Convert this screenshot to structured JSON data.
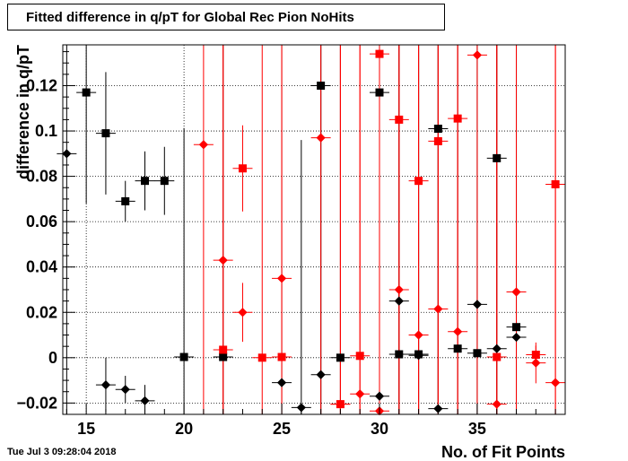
{
  "title": "Fitted difference in q/pT for Global Rec Pion NoHits",
  "timestamp": "Tue Jul  3 09:28:04 2018",
  "chart_data": {
    "type": "scatter",
    "xlabel": "No. of Fit Points",
    "ylabel": "difference in q/pT",
    "xlim": [
      13.8,
      39.5
    ],
    "ylim": [
      -0.025,
      0.138
    ],
    "x_ticks": [
      15,
      20,
      25,
      30,
      35
    ],
    "y_ticks": [
      -0.02,
      0,
      0.02,
      0.04,
      0.06,
      0.08,
      0.1,
      0.12
    ],
    "y_tick_labels": [
      "−0.02",
      "0",
      "0.02",
      "0.04",
      "0.06",
      "0.08",
      "0.1",
      "0.12"
    ],
    "grid": true,
    "series": [
      {
        "color": "#000000",
        "marker": "square",
        "points": [
          {
            "x": 15,
            "y": 0.117,
            "err": 0.049
          },
          {
            "x": 16,
            "y": 0.099,
            "err": 0.027
          },
          {
            "x": 17,
            "y": 0.069,
            "err": 0.009
          },
          {
            "x": 18,
            "y": 0.078,
            "err": 0.013
          },
          {
            "x": 19,
            "y": 0.078,
            "err": 0.015
          },
          {
            "x": 20,
            "y": 0.0003,
            "err": 0.101
          },
          {
            "x": 22,
            "y": 0.0003,
            "err": 0.16
          },
          {
            "x": 27,
            "y": 0.12,
            "err": 0.16
          },
          {
            "x": 28,
            "y": 0.0,
            "err": 0.16
          },
          {
            "x": 30,
            "y": 0.117,
            "err": 0.16
          },
          {
            "x": 31,
            "y": 0.0015,
            "err": 0.16
          },
          {
            "x": 32,
            "y": 0.0015,
            "err": 0.16
          },
          {
            "x": 33,
            "y": 0.101,
            "err": 0.16
          },
          {
            "x": 34,
            "y": 0.004,
            "err": 0.16
          },
          {
            "x": 35,
            "y": 0.002,
            "err": 0.16
          },
          {
            "x": 36,
            "y": 0.088,
            "err": 0.16
          },
          {
            "x": 37,
            "y": 0.0135,
            "err": 0.16
          }
        ]
      },
      {
        "color": "#000000",
        "marker": "diamond",
        "points": [
          {
            "x": 14,
            "y": 0.09,
            "err": 0.16
          },
          {
            "x": 16,
            "y": -0.012,
            "err": 0.012
          },
          {
            "x": 17,
            "y": -0.014,
            "err": 0.006
          },
          {
            "x": 18,
            "y": -0.019,
            "err": 0.007
          },
          {
            "x": 25,
            "y": -0.011,
            "err": 0.16
          },
          {
            "x": 26,
            "y": -0.022,
            "err": 0.118
          },
          {
            "x": 27,
            "y": -0.0075,
            "err": 0.16
          },
          {
            "x": 30,
            "y": -0.017,
            "err": 0.16
          },
          {
            "x": 31,
            "y": 0.025,
            "err": 0.16
          },
          {
            "x": 32,
            "y": 0.001,
            "err": 0.16
          },
          {
            "x": 33,
            "y": -0.0225,
            "err": 0.16
          },
          {
            "x": 35,
            "y": 0.0235,
            "err": 0.16
          },
          {
            "x": 36,
            "y": 0.004,
            "err": 0.16
          },
          {
            "x": 37,
            "y": 0.009,
            "err": 0.16
          }
        ]
      },
      {
        "color": "#ff0000",
        "marker": "square",
        "points": [
          {
            "x": 22,
            "y": 0.0035,
            "err": 0.16
          },
          {
            "x": 23,
            "y": 0.0835,
            "err": 0.019
          },
          {
            "x": 24,
            "y": 0.0,
            "err": 0.16
          },
          {
            "x": 25,
            "y": 0.0003,
            "err": 0.16
          },
          {
            "x": 28,
            "y": -0.0205,
            "err": 0.16
          },
          {
            "x": 29,
            "y": 0.0008,
            "err": 0.16
          },
          {
            "x": 30,
            "y": 0.134,
            "err": 0.16
          },
          {
            "x": 31,
            "y": 0.105,
            "err": 0.16
          },
          {
            "x": 32,
            "y": 0.078,
            "err": 0.16
          },
          {
            "x": 33,
            "y": 0.0955,
            "err": 0.16
          },
          {
            "x": 34,
            "y": 0.1055,
            "err": 0.16
          },
          {
            "x": 36,
            "y": 0.0003,
            "err": 0.16
          },
          {
            "x": 38,
            "y": 0.0013,
            "err": 0.004
          },
          {
            "x": 39,
            "y": 0.0765,
            "err": 0.16
          }
        ]
      },
      {
        "color": "#ff0000",
        "marker": "diamond",
        "points": [
          {
            "x": 21,
            "y": 0.094,
            "err": 0.16
          },
          {
            "x": 22,
            "y": 0.043,
            "err": 0.16
          },
          {
            "x": 23,
            "y": 0.02,
            "err": 0.013
          },
          {
            "x": 25,
            "y": 0.035,
            "err": 0.16
          },
          {
            "x": 27,
            "y": 0.097,
            "err": 0.16
          },
          {
            "x": 28,
            "y": -0.0205,
            "err": 0.16
          },
          {
            "x": 29,
            "y": -0.016,
            "err": 0.16
          },
          {
            "x": 30,
            "y": -0.0235,
            "err": 0.16
          },
          {
            "x": 31,
            "y": 0.03,
            "err": 0.16
          },
          {
            "x": 32,
            "y": 0.01,
            "err": 0.16
          },
          {
            "x": 33,
            "y": 0.0215,
            "err": 0.16
          },
          {
            "x": 34,
            "y": 0.0115,
            "err": 0.16
          },
          {
            "x": 35,
            "y": 0.1335,
            "err": 0.16
          },
          {
            "x": 36,
            "y": -0.0205,
            "err": 0.16
          },
          {
            "x": 37,
            "y": 0.029,
            "err": 0.16
          },
          {
            "x": 38,
            "y": -0.0023,
            "err": 0.009
          },
          {
            "x": 39,
            "y": -0.011,
            "err": 0.16
          }
        ]
      }
    ]
  }
}
